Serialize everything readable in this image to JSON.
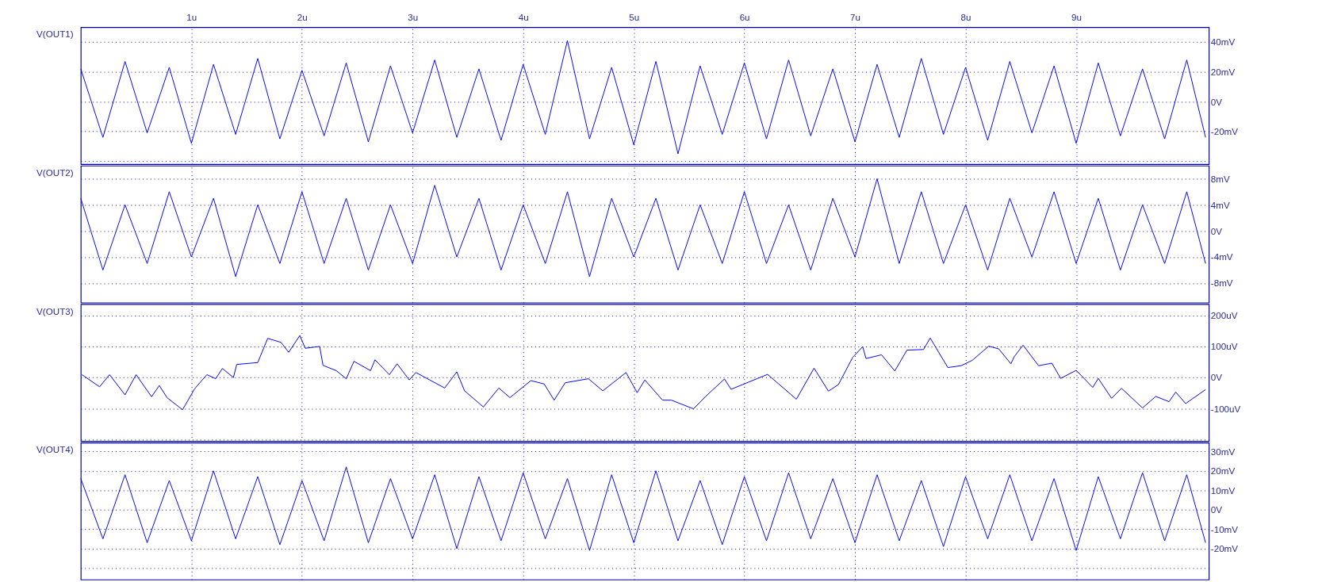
{
  "chart_data": [
    {
      "type": "line",
      "title": "V(OUT1)",
      "x": [
        0,
        0.2,
        0.4,
        0.6,
        0.8,
        1,
        1.2,
        1.4,
        1.6,
        1.8,
        2,
        2.2,
        2.4,
        2.6,
        2.8,
        3,
        3.2,
        3.4,
        3.6,
        3.8,
        4,
        4.2,
        4.4,
        4.6,
        4.8,
        5,
        5.2,
        5.4,
        5.6,
        5.8,
        6,
        6.2,
        6.4,
        6.6,
        6.8,
        7,
        7.2,
        7.4,
        7.6,
        7.8,
        8,
        8.2,
        8.4,
        8.6,
        8.8,
        9,
        9.2,
        9.4,
        9.6,
        9.8,
        10,
        10.17
      ],
      "series": [
        {
          "color": "#0000ff",
          "values": [
            22,
            -24,
            27,
            -21,
            23,
            -28,
            25,
            -22,
            29,
            -25,
            21,
            -23,
            26,
            -27,
            24,
            -21,
            28,
            -24,
            22,
            -26,
            25,
            -22,
            41,
            -25,
            23,
            -29,
            27,
            -35,
            24,
            -22,
            26,
            -25,
            28,
            -23,
            22,
            -27,
            25,
            -24,
            29,
            -22,
            23,
            -26,
            27,
            -21,
            24,
            -28,
            26,
            -23,
            22,
            -25,
            28,
            -24
          ]
        }
      ],
      "xlim": [
        0,
        10.2
      ],
      "xticks": [
        {
          "value": 1,
          "label": "1u"
        },
        {
          "value": 2,
          "label": "2u"
        },
        {
          "value": 3,
          "label": "3u"
        },
        {
          "value": 4,
          "label": "4u"
        },
        {
          "value": 5,
          "label": "5u"
        },
        {
          "value": 6,
          "label": "6u"
        },
        {
          "value": 7,
          "label": "7u"
        },
        {
          "value": 8,
          "label": "8u"
        },
        {
          "value": 9,
          "label": "9u"
        }
      ],
      "ylim": [
        -42,
        50
      ],
      "yticks": [
        {
          "value": -40,
          "label": null
        },
        {
          "value": -20,
          "label": "-20mV"
        },
        {
          "value": 0,
          "label": "0V"
        },
        {
          "value": 20,
          "label": "20mV"
        },
        {
          "value": 40,
          "label": "40mV"
        }
      ],
      "grid": true
    },
    {
      "type": "line",
      "title": "V(OUT2)",
      "x": [
        0,
        0.2,
        0.4,
        0.6,
        0.8,
        1,
        1.2,
        1.4,
        1.6,
        1.8,
        2,
        2.2,
        2.4,
        2.6,
        2.8,
        3,
        3.2,
        3.4,
        3.6,
        3.8,
        4,
        4.2,
        4.4,
        4.6,
        4.8,
        5,
        5.2,
        5.4,
        5.6,
        5.8,
        6,
        6.2,
        6.4,
        6.6,
        6.8,
        7,
        7.2,
        7.4,
        7.6,
        7.8,
        8,
        8.2,
        8.4,
        8.6,
        8.8,
        9,
        9.2,
        9.4,
        9.6,
        9.8,
        10,
        10.17
      ],
      "series": [
        {
          "color": "#0000ff",
          "values": [
            5,
            -6,
            4,
            -5,
            6,
            -4,
            5,
            -7,
            4,
            -5,
            6,
            -5,
            5,
            -6,
            4,
            -5,
            7,
            -4,
            5,
            -6,
            4,
            -5,
            6,
            -7,
            5,
            -4,
            5,
            -6,
            4,
            -5,
            6,
            -5,
            4,
            -6,
            5,
            -4,
            8,
            -5,
            6,
            -5,
            4,
            -6,
            5,
            -4,
            6,
            -5,
            5,
            -6,
            4,
            -5,
            6,
            -5
          ]
        }
      ],
      "xlim": [
        0,
        10.2
      ],
      "xticks": [
        1,
        2,
        3,
        4,
        5,
        6,
        7,
        8,
        9
      ],
      "ylim": [
        -11,
        10
      ],
      "yticks": [
        {
          "value": -8,
          "label": "-8mV"
        },
        {
          "value": -4,
          "label": "-4mV"
        },
        {
          "value": 0,
          "label": "0V"
        },
        {
          "value": 4,
          "label": "4mV"
        },
        {
          "value": 8,
          "label": "8mV"
        }
      ],
      "grid": true,
      "tick_labels": "y"
    },
    {
      "type": "line",
      "title": "V(OUT3)",
      "x": [
        0.01,
        0.17,
        0.26,
        0.4,
        0.5,
        0.64,
        0.71,
        0.78,
        0.92,
        1.03,
        1.14,
        1.22,
        1.28,
        1.38,
        1.41,
        1.6,
        1.69,
        1.81,
        1.88,
        1.98,
        2.03,
        2.16,
        2.19,
        2.31,
        2.4,
        2.47,
        2.62,
        2.66,
        2.79,
        2.86,
        2.97,
        3.03,
        3.29,
        3.4,
        3.47,
        3.64,
        3.78,
        3.88,
        4.07,
        4.19,
        4.28,
        4.38,
        4.59,
        4.72,
        4.93,
        5.03,
        5.1,
        5.26,
        5.34,
        5.54,
        5.65,
        5.82,
        5.88,
        6.21,
        6.47,
        6.63,
        6.76,
        6.85,
        6.98,
        7.07,
        7.1,
        7.24,
        7.36,
        7.47,
        7.62,
        7.68,
        7.84,
        7.96,
        8.06,
        8.21,
        8.3,
        8.41,
        8.44,
        8.52,
        8.66,
        8.78,
        8.86,
        9,
        9.15,
        9.2,
        9.32,
        9.41,
        9.6,
        9.72,
        9.84,
        9.9,
        9.99,
        10.17
      ],
      "series": [
        {
          "color": "#0000ff",
          "values": [
            9,
            -30,
            9,
            -56,
            9,
            -62,
            -26,
            -65,
            -104,
            -36,
            9,
            -4,
            29,
            0,
            42,
            48,
            126,
            113,
            81,
            135,
            94,
            100,
            39,
            22,
            -4,
            52,
            22,
            57,
            9,
            44,
            -8,
            16,
            -34,
            18,
            -43,
            -95,
            -34,
            -65,
            -10,
            -21,
            -73,
            -17,
            -4,
            -43,
            16,
            -49,
            -8,
            -73,
            -73,
            -101,
            -61,
            -5,
            -38,
            10,
            -70,
            30,
            -44,
            -23,
            65,
            99,
            61,
            73,
            21,
            88,
            90,
            127,
            32,
            38,
            55,
            101,
            92,
            44,
            67,
            104,
            38,
            46,
            -3,
            23,
            -32,
            -3,
            -67,
            -35,
            -98,
            -61,
            -78,
            -47,
            -84,
            -39
          ]
        }
      ],
      "xlim": [
        0,
        10.2
      ],
      "xticks": [
        1,
        2,
        3,
        4,
        5,
        6,
        7,
        8,
        9
      ],
      "ylim": [
        -205,
        236
      ],
      "yticks": [
        {
          "value": -200,
          "label": null
        },
        {
          "value": -100,
          "label": "-100uV"
        },
        {
          "value": 0,
          "label": "0V"
        },
        {
          "value": 100,
          "label": "100uV"
        },
        {
          "value": 200,
          "label": "200uV"
        }
      ],
      "grid": true,
      "tick_labels": "y"
    },
    {
      "type": "line",
      "title": "V(OUT4)",
      "x": [
        0,
        0.2,
        0.4,
        0.6,
        0.8,
        1,
        1.2,
        1.4,
        1.6,
        1.8,
        2,
        2.2,
        2.4,
        2.6,
        2.8,
        3,
        3.2,
        3.4,
        3.6,
        3.8,
        4,
        4.2,
        4.4,
        4.6,
        4.8,
        5,
        5.2,
        5.4,
        5.6,
        5.8,
        6,
        6.2,
        6.4,
        6.6,
        6.8,
        7,
        7.2,
        7.4,
        7.6,
        7.8,
        8,
        8.2,
        8.4,
        8.6,
        8.8,
        9,
        9.2,
        9.4,
        9.6,
        9.8,
        10,
        10.17
      ],
      "series": [
        {
          "color": "#0000ff",
          "values": [
            16,
            -15,
            18,
            -17,
            15,
            -16,
            20,
            -15,
            17,
            -18,
            15,
            -16,
            22,
            -17,
            16,
            -15,
            18,
            -20,
            17,
            -16,
            19,
            -15,
            16,
            -21,
            18,
            -17,
            20,
            -16,
            15,
            -18,
            17,
            -16,
            19,
            -15,
            16,
            -17,
            18,
            -16,
            15,
            -19,
            17,
            -15,
            18,
            -16,
            16,
            -21,
            17,
            -15,
            19,
            -16,
            18,
            -17
          ]
        }
      ],
      "xlim": [
        0,
        10.2
      ],
      "xticks": [
        1,
        2,
        3,
        4,
        5,
        6,
        7,
        8,
        9
      ],
      "ylim": [
        -36,
        34.5
      ],
      "yticks": [
        {
          "value": -30,
          "label": null
        },
        {
          "value": -20,
          "label": "-20mV"
        },
        {
          "value": -10,
          "label": "-10mV"
        },
        {
          "value": 0,
          "label": "0V"
        },
        {
          "value": 10,
          "label": "10mV"
        },
        {
          "value": 20,
          "label": "20mV"
        },
        {
          "value": 30,
          "label": "30mV"
        }
      ],
      "grid": true,
      "tick_labels": "y"
    }
  ]
}
